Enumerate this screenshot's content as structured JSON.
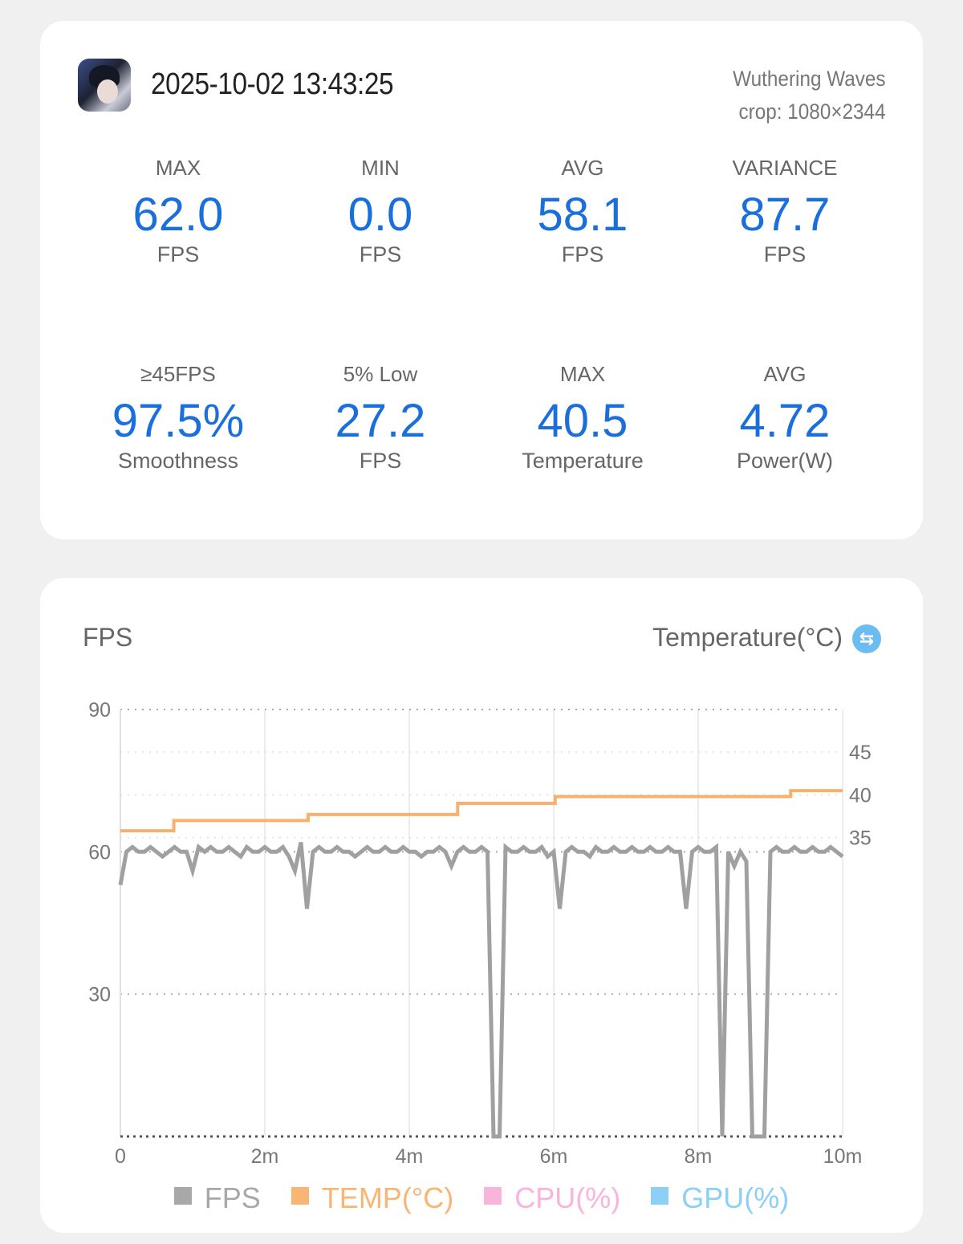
{
  "header": {
    "datetime": "2025-10-02 13:43:25",
    "game_name": "Wuthering Waves",
    "crop": "crop: 1080×2344",
    "app_icon": "game-avatar-icon"
  },
  "stats": [
    {
      "label": "MAX",
      "value": "62.0",
      "unit": "FPS"
    },
    {
      "label": "MIN",
      "value": "0.0",
      "unit": "FPS"
    },
    {
      "label": "AVG",
      "value": "58.1",
      "unit": "FPS"
    },
    {
      "label": "VARIANCE",
      "value": "87.7",
      "unit": "FPS"
    },
    {
      "label": "≥45FPS",
      "value": "97.5%",
      "unit": "Smoothness"
    },
    {
      "label": "5% Low",
      "value": "27.2",
      "unit": "FPS"
    },
    {
      "label": "MAX",
      "value": "40.5",
      "unit": "Temperature"
    },
    {
      "label": "AVG",
      "value": "4.72",
      "unit": "Power(W)"
    }
  ],
  "chart_header": {
    "left_title": "FPS",
    "right_title": "Temperature(°C)",
    "swap_icon": "swap-icon"
  },
  "colors": {
    "accent": "#1a6fdc",
    "fps": "#a0a0a0",
    "temp": "#f7b06e",
    "cpu": "#f9b4dc",
    "gpu": "#8ccff7"
  },
  "chart_data": {
    "type": "line",
    "x_unit": "minutes",
    "xlim": [
      0,
      10
    ],
    "x_ticks": [
      "0",
      "2m",
      "4m",
      "6m",
      "8m",
      "10m"
    ],
    "x_tick_values": [
      0,
      2,
      4,
      6,
      8,
      10
    ],
    "y_left": {
      "label": "FPS",
      "ylim": [
        0,
        90
      ],
      "ticks": [
        "90",
        "60",
        "30"
      ],
      "tick_values": [
        90,
        60,
        30
      ]
    },
    "y_right": {
      "label": "Temperature(°C)",
      "ylim": [
        0,
        50
      ],
      "ticks": [
        "45",
        "40",
        "35"
      ],
      "tick_values": [
        45,
        40,
        35
      ]
    },
    "series": [
      {
        "name": "FPS",
        "axis": "left",
        "sample_interval_s": 5,
        "values": [
          53,
          60,
          61,
          60,
          60,
          61,
          60,
          59,
          60,
          61,
          60,
          60,
          56,
          61,
          60,
          61,
          60,
          60,
          61,
          60,
          59,
          61,
          60,
          60,
          61,
          60,
          60,
          61,
          59,
          56,
          62,
          48,
          60,
          61,
          60,
          60,
          61,
          60,
          60,
          59,
          60,
          61,
          60,
          60,
          61,
          60,
          60,
          61,
          60,
          60,
          59,
          60,
          60,
          61,
          60,
          57,
          60,
          61,
          60,
          60,
          61,
          60,
          0,
          0,
          61,
          60,
          60,
          61,
          60,
          60,
          61,
          59,
          60,
          48,
          60,
          61,
          60,
          60,
          59,
          61,
          60,
          60,
          61,
          60,
          60,
          61,
          60,
          60,
          61,
          60,
          60,
          61,
          60,
          60,
          48,
          60,
          61,
          60,
          60,
          61,
          0,
          60,
          57,
          60,
          58,
          0,
          0,
          0,
          60,
          61,
          60,
          60,
          61,
          60,
          60,
          61,
          60,
          60,
          61,
          60,
          59
        ]
      },
      {
        "name": "TEMP(°C)",
        "axis": "right",
        "step_times_min": [
          0,
          0.74,
          2.6,
          4.67,
          6.02,
          9.28
        ],
        "values": [
          35.8,
          37.0,
          37.7,
          39.0,
          39.8,
          40.5
        ]
      },
      {
        "name": "CPU(%)",
        "axis": "right",
        "values": []
      },
      {
        "name": "GPU(%)",
        "axis": "right",
        "values": []
      }
    ],
    "legend": [
      "FPS",
      "TEMP(°C)",
      "CPU(%)",
      "GPU(%)"
    ],
    "legend_position": "bottom",
    "grid": true
  }
}
